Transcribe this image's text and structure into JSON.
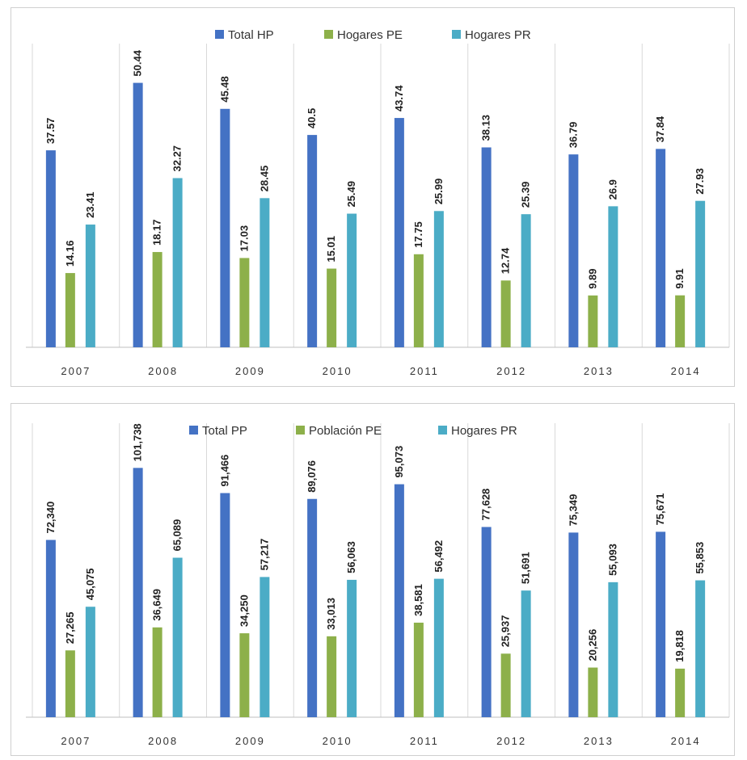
{
  "chart_data": [
    {
      "type": "bar",
      "title": "",
      "xlabel": "",
      "ylabel": "",
      "ylim": [
        0,
        57
      ],
      "grid": false,
      "legend_position": "top",
      "categories": [
        "2007",
        "2008",
        "2009",
        "2010",
        "2011",
        "2012",
        "2013",
        "2014"
      ],
      "series": [
        {
          "name": "Total HP",
          "color": "#4472C4",
          "values": [
            37.57,
            50.44,
            45.48,
            40.5,
            43.74,
            38.13,
            36.79,
            37.84
          ],
          "labels": [
            "37.57",
            "50.44",
            "45.48",
            "40.5",
            "43.74",
            "38.13",
            "36.79",
            "37.84"
          ]
        },
        {
          "name": "Hogares PE",
          "color": "#8DB04A",
          "values": [
            14.16,
            18.17,
            17.03,
            15.01,
            17.75,
            12.74,
            9.89,
            9.91
          ],
          "labels": [
            "14.16",
            "18.17",
            "17.03",
            "15.01",
            "17.75",
            "12.74",
            "9.89",
            "9.91"
          ]
        },
        {
          "name": "Hogares PR",
          "color": "#4BACC6",
          "values": [
            23.41,
            32.27,
            28.45,
            25.49,
            25.99,
            25.39,
            26.9,
            27.93
          ],
          "labels": [
            "23.41",
            "32.27",
            "28.45",
            "25.49",
            "25.99",
            "25.39",
            "26.9",
            "27.93"
          ]
        }
      ]
    },
    {
      "type": "bar",
      "title": "",
      "xlabel": "",
      "ylabel": "",
      "ylim": [
        0,
        118000
      ],
      "grid": false,
      "legend_position": "top",
      "categories": [
        "2007",
        "2008",
        "2009",
        "2010",
        "2011",
        "2012",
        "2013",
        "2014"
      ],
      "series": [
        {
          "name": "Total PP",
          "color": "#4472C4",
          "values": [
            72340,
            101738,
            91466,
            89076,
            95073,
            77628,
            75349,
            75671
          ],
          "labels": [
            "72,340",
            "101,738",
            "91,466",
            "89,076",
            "95,073",
            "77,628",
            "75,349",
            "75,671"
          ]
        },
        {
          "name": "Población PE",
          "color": "#8DB04A",
          "values": [
            27265,
            36649,
            34250,
            33013,
            38581,
            25937,
            20256,
            19818
          ],
          "labels": [
            "27,265",
            "36,649",
            "34,250",
            "33,013",
            "38,581",
            "25,937",
            "20,256",
            "19,818"
          ]
        },
        {
          "name": "Hogares PR",
          "color": "#4BACC6",
          "values": [
            45075,
            65089,
            57217,
            56063,
            56492,
            51691,
            55093,
            55853
          ],
          "labels": [
            "45,075",
            "65,089",
            "57,217",
            "56,063",
            "56,492",
            "51,691",
            "55,093",
            "55,853"
          ]
        }
      ]
    }
  ]
}
